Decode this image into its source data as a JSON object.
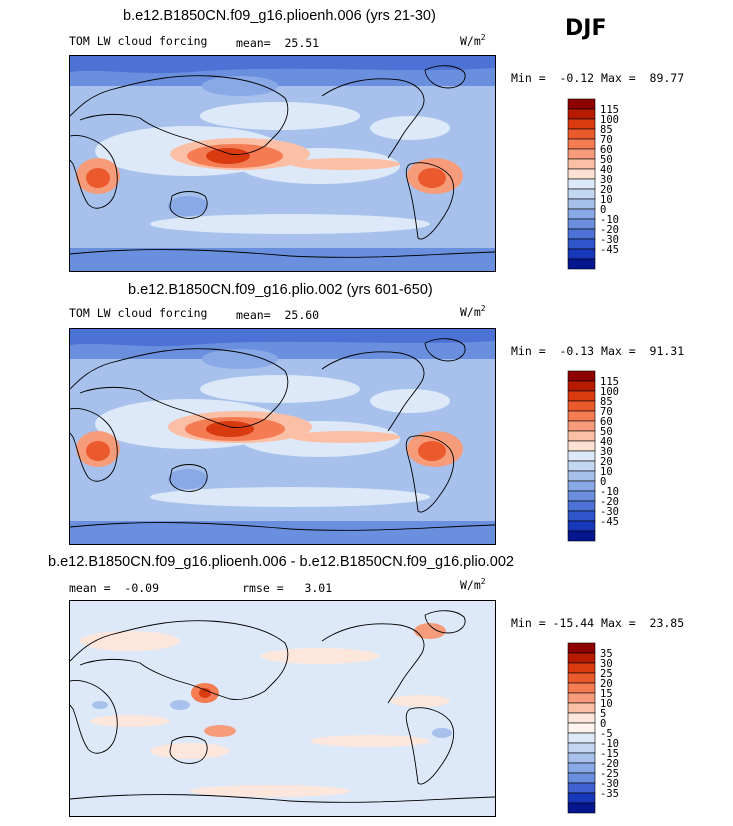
{
  "season_label": "DJF",
  "colors": {
    "p_land": "#3366cc",
    "neg_deep": "#00007a"
  },
  "chart_data": [
    {
      "type": "heatmap",
      "title": "b.e12.B1850CN.f09_g16.plioenh.006 (yrs 21-30)",
      "variable": "TOM LW cloud forcing",
      "mean_label": "mean=",
      "mean": "25.51",
      "units_base": "W/m",
      "units_exp": "2",
      "min_label": "Min =",
      "min": "-0.12",
      "max_label": "Max =",
      "max": "89.77",
      "levels": [
        "115",
        "100",
        "85",
        "70",
        "60",
        "50",
        "40",
        "30",
        "20",
        "10",
        "0",
        "-10",
        "-20",
        "-30",
        "-45"
      ],
      "level_colors": [
        "#8f0000",
        "#b81a00",
        "#d93a10",
        "#ea5a2c",
        "#f47b52",
        "#f79c7a",
        "#fbbfa6",
        "#fde2d4",
        "#dde9f8",
        "#c4d7f2",
        "#a7c1ec",
        "#89a9e6",
        "#6a8fde",
        "#4c72d5",
        "#2f55ca",
        "#1738b8",
        "#06168f"
      ]
    },
    {
      "type": "heatmap",
      "title": "b.e12.B1850CN.f09_g16.plio.002 (yrs 601-650)",
      "variable": "TOM LW cloud forcing",
      "mean_label": "mean=",
      "mean": "25.60",
      "units_base": "W/m",
      "units_exp": "2",
      "min_label": "Min =",
      "min": "-0.13",
      "max_label": "Max =",
      "max": "91.31",
      "levels": [
        "115",
        "100",
        "85",
        "70",
        "60",
        "50",
        "40",
        "30",
        "20",
        "10",
        "0",
        "-10",
        "-20",
        "-30",
        "-45"
      ],
      "level_colors": [
        "#8f0000",
        "#b81a00",
        "#d93a10",
        "#ea5a2c",
        "#f47b52",
        "#f79c7a",
        "#fbbfa6",
        "#fde2d4",
        "#dde9f8",
        "#c4d7f2",
        "#a7c1ec",
        "#89a9e6",
        "#6a8fde",
        "#4c72d5",
        "#2f55ca",
        "#1738b8",
        "#06168f"
      ]
    },
    {
      "type": "heatmap",
      "title": "b.e12.B1850CN.f09_g16.plioenh.006 - b.e12.B1850CN.f09_g16.plio.002",
      "mean_label": "mean =",
      "mean": "-0.09",
      "rmse_label": "rmse =",
      "rmse": "3.01",
      "units_base": "W/m",
      "units_exp": "2",
      "min_label": "Min =",
      "min": "-15.44",
      "max_label": "Max =",
      "max": "23.85",
      "levels": [
        "35",
        "30",
        "25",
        "20",
        "15",
        "10",
        "5",
        "0",
        "-5",
        "-10",
        "-15",
        "-20",
        "-25",
        "-30",
        "-35"
      ],
      "level_colors": [
        "#8f0000",
        "#b81a00",
        "#d93a10",
        "#ea5a2c",
        "#f47b52",
        "#f79c7a",
        "#fbbfa6",
        "#fde6dc",
        "#fdf4ee",
        "#dde9f8",
        "#c4d7f2",
        "#a7c1ec",
        "#89a9e6",
        "#6a8fde",
        "#3f62d0",
        "#1738b8",
        "#06168f"
      ]
    }
  ]
}
